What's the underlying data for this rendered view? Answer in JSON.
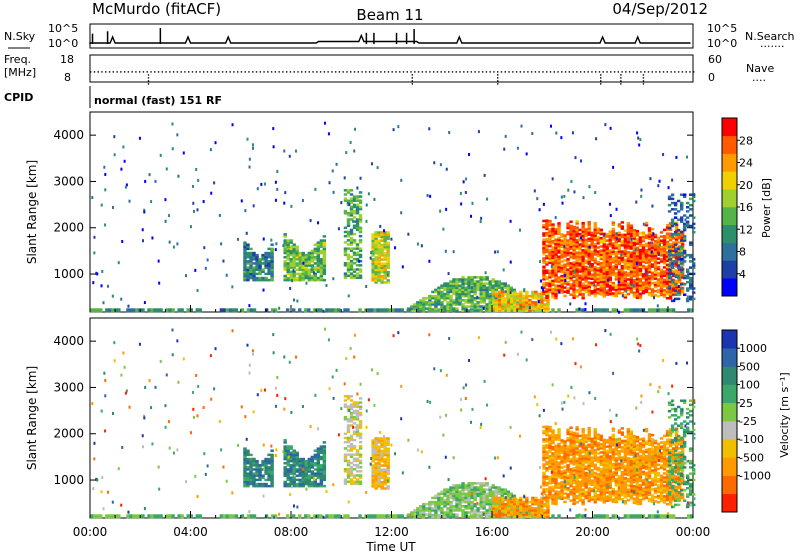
{
  "chart_data": {
    "type": "heatmap",
    "header": {
      "site": "McMurdo (fitACF)",
      "beam": "Beam 11",
      "date": "04/Sep/2012"
    },
    "noise_panel": {
      "left_label": "N.Sky",
      "right_label": "N.Search",
      "left_ticks": [
        "10^5",
        "10^0"
      ],
      "right_ticks": [
        "10^5",
        "10^0"
      ]
    },
    "freq_panel": {
      "left_label_1": "Freq.",
      "left_label_2": "[MHz]",
      "right_label": "Nave",
      "left_ticks": [
        "18",
        "8"
      ],
      "right_ticks": [
        "60",
        "0"
      ],
      "freq_mhz": 12
    },
    "cpid": {
      "label": "CPID",
      "program": "normal (fast) 151 RF"
    },
    "x_axis": {
      "label": "Time UT",
      "ticks": [
        "00:00",
        "04:00",
        "08:00",
        "12:00",
        "16:00",
        "20:00",
        "00:00"
      ],
      "range_hours": [
        0,
        24
      ]
    },
    "y_axis": {
      "label": "Slant Range [km]",
      "ticks": [
        "1000",
        "2000",
        "3000",
        "4000"
      ],
      "range_km": [
        180,
        4500
      ]
    },
    "power": {
      "colorbar_label": "Power [dB]",
      "colorbar_ticks": [
        "4",
        "8",
        "12",
        "16",
        "20",
        "24",
        "28"
      ],
      "range_db": [
        0,
        32
      ],
      "colors": [
        "#0000ff",
        "#1e3fa8",
        "#2f6fa0",
        "#2a8f6a",
        "#55b447",
        "#9fd02e",
        "#f0d000",
        "#ff9a00",
        "#ff5a00",
        "#ff0000"
      ]
    },
    "velocity": {
      "colorbar_label": "Velocity [m s^-1]",
      "colorbar_ticks": [
        "1000",
        "500",
        "100",
        "25",
        "-25",
        "-100",
        "-500",
        "-1000"
      ],
      "colors": [
        "#1c34b0",
        "#2e64a8",
        "#2f8870",
        "#3aa868",
        "#7cc840",
        "#bdbdbd",
        "#f0c000",
        "#ff9a00",
        "#ff6a00",
        "#ff2000"
      ]
    },
    "regions": [
      {
        "t0": 6.1,
        "t1": 7.3,
        "r0": 850,
        "r1": 1700,
        "p": 10,
        "v": 2,
        "shape": "u"
      },
      {
        "t0": 7.7,
        "t1": 9.3,
        "r0": 850,
        "r1": 1850,
        "p": 15,
        "v": 2,
        "shape": "u"
      },
      {
        "t0": 10.1,
        "t1": 10.7,
        "r0": 900,
        "r1": 2800,
        "p": 14,
        "v": 5,
        "shape": "col"
      },
      {
        "t0": 11.2,
        "t1": 11.9,
        "r0": 800,
        "r1": 1900,
        "p": 19,
        "v": 6,
        "shape": "blob"
      },
      {
        "t0": 12.5,
        "t1": 18.0,
        "r0": 190,
        "r1": 950,
        "p": 14,
        "v": 4,
        "shape": "hump"
      },
      {
        "t0": 16.0,
        "t1": 18.2,
        "r0": 190,
        "r1": 600,
        "p": 22,
        "v": 7,
        "shape": "band"
      },
      {
        "t0": 18.0,
        "t1": 23.6,
        "r0": 450,
        "r1": 2150,
        "p": 27,
        "v": 7,
        "shape": "slab"
      },
      {
        "t0": 23.0,
        "t1": 24.0,
        "r0": 400,
        "r1": 2700,
        "p": 8,
        "v": 3,
        "shape": "edge"
      }
    ]
  }
}
